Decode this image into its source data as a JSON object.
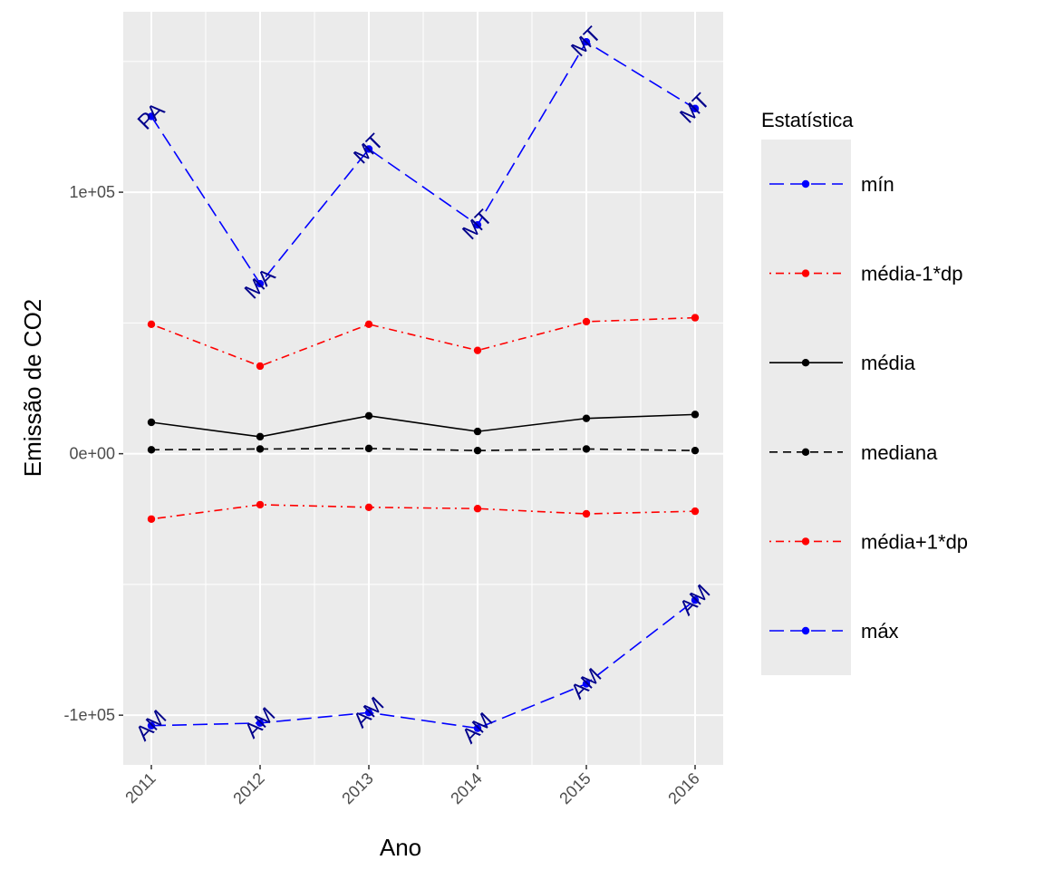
{
  "chart_data": {
    "type": "line",
    "x": [
      "2011",
      "2012",
      "2013",
      "2014",
      "2015",
      "2016"
    ],
    "xlabel": "Ano",
    "ylabel": "Emissão de CO2",
    "ylim": [
      -119000,
      169000
    ],
    "y_ticks": [
      {
        "value": 100000,
        "label": "1e+05"
      },
      {
        "value": 0,
        "label": "0e+00"
      },
      {
        "value": -100000,
        "label": "-1e+05"
      }
    ],
    "grid": true,
    "legend": {
      "title": "Estatística",
      "position": "right"
    },
    "series": [
      {
        "name": "mín",
        "color": "#0000ff",
        "dash": "longdash",
        "values": [
          129000,
          65000,
          116500,
          87500,
          157500,
          132000
        ],
        "point_labels": [
          "PA",
          "MA",
          "MT",
          "MT",
          "MT",
          "MT"
        ],
        "label_color": "#00008b"
      },
      {
        "name": "média-1*dp",
        "color": "#ff0000",
        "dash": "dotdash",
        "values": [
          49500,
          33500,
          49500,
          39500,
          50500,
          52000
        ]
      },
      {
        "name": "média",
        "color": "#000000",
        "dash": "solid",
        "values": [
          12000,
          6500,
          14500,
          8500,
          13500,
          15000
        ]
      },
      {
        "name": "mediana",
        "color": "#000000",
        "dash": "dashed",
        "values": [
          1500,
          1800,
          2000,
          1200,
          1800,
          1200
        ]
      },
      {
        "name": "média+1*dp",
        "color": "#ff0000",
        "dash": "dotdash",
        "values": [
          -25000,
          -19500,
          -20500,
          -21000,
          -23000,
          -22000
        ]
      },
      {
        "name": "máx",
        "color": "#0000ff",
        "dash": "longdash",
        "values": [
          -104000,
          -103000,
          -99000,
          -105000,
          -88000,
          -56000
        ],
        "point_labels": [
          "AM",
          "AM",
          "AM",
          "AM",
          "AM",
          "AM"
        ],
        "label_color": "#00008b"
      }
    ]
  }
}
